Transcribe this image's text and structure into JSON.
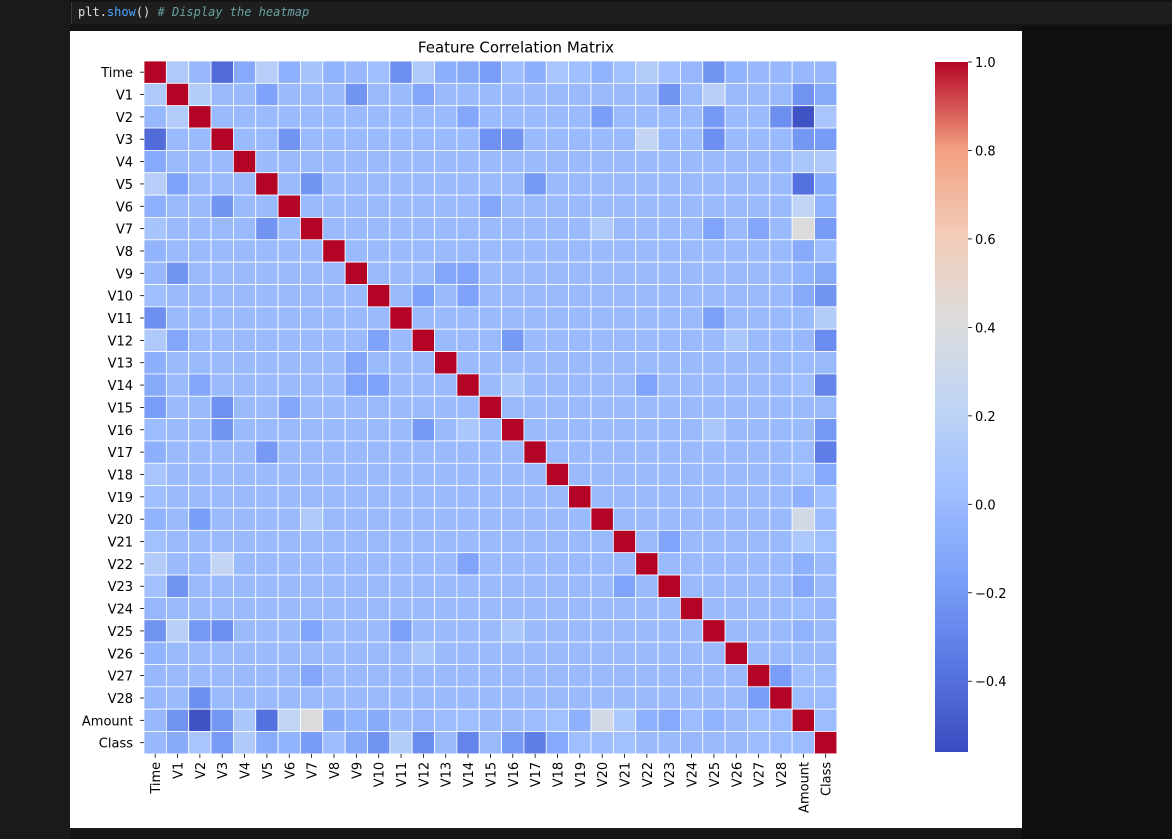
{
  "code": {
    "object": "plt",
    "dot": ".",
    "function": "show",
    "parens": "()",
    "comment": "# Display the heatmap"
  },
  "chart_data": {
    "type": "heatmap",
    "title": "Feature Correlation Matrix",
    "labels": [
      "Time",
      "V1",
      "V2",
      "V3",
      "V4",
      "V5",
      "V6",
      "V7",
      "V8",
      "V9",
      "V10",
      "V11",
      "V12",
      "V13",
      "V14",
      "V15",
      "V16",
      "V17",
      "V18",
      "V19",
      "V20",
      "V21",
      "V22",
      "V23",
      "V24",
      "V25",
      "V26",
      "V27",
      "V28",
      "Amount",
      "Class"
    ],
    "colorbar": {
      "colormap": "coolwarm",
      "vmin": -0.56,
      "vmax": 1.0,
      "ticks": [
        1.0,
        0.8,
        0.6,
        0.4,
        0.2,
        0.0,
        -0.2,
        -0.4
      ],
      "tick_labels": [
        "1.0",
        "0.8",
        "0.6",
        "0.4",
        "0.2",
        "0.0",
        "−0.2",
        "−0.4"
      ]
    },
    "correlations": [
      {
        "row": "Time",
        "col": "V1",
        "value": 0.12
      },
      {
        "row": "Time",
        "col": "V2",
        "value": -0.01
      },
      {
        "row": "Time",
        "col": "V3",
        "value": -0.42
      },
      {
        "row": "Time",
        "col": "V4",
        "value": -0.11
      },
      {
        "row": "Time",
        "col": "V5",
        "value": 0.17
      },
      {
        "row": "Time",
        "col": "V6",
        "value": -0.06
      },
      {
        "row": "Time",
        "col": "V7",
        "value": 0.08
      },
      {
        "row": "Time",
        "col": "V8",
        "value": -0.04
      },
      {
        "row": "Time",
        "col": "V9",
        "value": -0.01
      },
      {
        "row": "Time",
        "col": "V10",
        "value": 0.03
      },
      {
        "row": "Time",
        "col": "V11",
        "value": -0.25
      },
      {
        "row": "Time",
        "col": "V12",
        "value": 0.12
      },
      {
        "row": "Time",
        "col": "V13",
        "value": -0.07
      },
      {
        "row": "Time",
        "col": "V14",
        "value": -0.1
      },
      {
        "row": "Time",
        "col": "V15",
        "value": -0.18
      },
      {
        "row": "Time",
        "col": "V16",
        "value": 0.01
      },
      {
        "row": "Time",
        "col": "V17",
        "value": -0.07
      },
      {
        "row": "Time",
        "col": "V18",
        "value": 0.09
      },
      {
        "row": "Time",
        "col": "V19",
        "value": 0.03
      },
      {
        "row": "Time",
        "col": "V20",
        "value": -0.05
      },
      {
        "row": "Time",
        "col": "V21",
        "value": 0.04
      },
      {
        "row": "Time",
        "col": "V22",
        "value": 0.14
      },
      {
        "row": "Time",
        "col": "V23",
        "value": 0.05
      },
      {
        "row": "Time",
        "col": "V24",
        "value": -0.02
      },
      {
        "row": "Time",
        "col": "V25",
        "value": -0.23
      },
      {
        "row": "Time",
        "col": "V26",
        "value": -0.04
      },
      {
        "row": "Time",
        "col": "V27",
        "value": -0.01
      },
      {
        "row": "Time",
        "col": "V28",
        "value": -0.01
      },
      {
        "row": "Time",
        "col": "Amount",
        "value": -0.01
      },
      {
        "row": "Time",
        "col": "Class",
        "value": -0.01
      },
      {
        "row": "V1",
        "col": "Amount",
        "value": -0.23
      },
      {
        "row": "V2",
        "col": "Amount",
        "value": -0.53
      },
      {
        "row": "V3",
        "col": "Amount",
        "value": -0.21
      },
      {
        "row": "V4",
        "col": "Amount",
        "value": 0.1
      },
      {
        "row": "V5",
        "col": "Amount",
        "value": -0.39
      },
      {
        "row": "V6",
        "col": "Amount",
        "value": 0.22
      },
      {
        "row": "V7",
        "col": "Amount",
        "value": 0.4
      },
      {
        "row": "V8",
        "col": "Amount",
        "value": -0.1
      },
      {
        "row": "V9",
        "col": "Amount",
        "value": -0.04
      },
      {
        "row": "V10",
        "col": "Amount",
        "value": -0.1
      },
      {
        "row": "V11",
        "col": "Amount",
        "value": 0.0
      },
      {
        "row": "V12",
        "col": "Amount",
        "value": -0.01
      },
      {
        "row": "V13",
        "col": "Amount",
        "value": 0.01
      },
      {
        "row": "V14",
        "col": "Amount",
        "value": 0.03
      },
      {
        "row": "V15",
        "col": "Amount",
        "value": -0.0
      },
      {
        "row": "V16",
        "col": "Amount",
        "value": -0.0
      },
      {
        "row": "V17",
        "col": "Amount",
        "value": 0.01
      },
      {
        "row": "V18",
        "col": "Amount",
        "value": 0.04
      },
      {
        "row": "V19",
        "col": "Amount",
        "value": -0.06
      },
      {
        "row": "V20",
        "col": "Amount",
        "value": 0.34
      },
      {
        "row": "V21",
        "col": "Amount",
        "value": 0.11
      },
      {
        "row": "V22",
        "col": "Amount",
        "value": -0.06
      },
      {
        "row": "V23",
        "col": "Amount",
        "value": -0.11
      },
      {
        "row": "V24",
        "col": "Amount",
        "value": 0.01
      },
      {
        "row": "V25",
        "col": "Amount",
        "value": -0.05
      },
      {
        "row": "V26",
        "col": "Amount",
        "value": -0.0
      },
      {
        "row": "V27",
        "col": "Amount",
        "value": 0.03
      },
      {
        "row": "V28",
        "col": "Amount",
        "value": 0.01
      },
      {
        "row": "Amount",
        "col": "Class",
        "value": 0.01
      },
      {
        "row": "V1",
        "col": "Class",
        "value": -0.1
      },
      {
        "row": "V2",
        "col": "Class",
        "value": 0.09
      },
      {
        "row": "V3",
        "col": "Class",
        "value": -0.19
      },
      {
        "row": "V4",
        "col": "Class",
        "value": 0.13
      },
      {
        "row": "V5",
        "col": "Class",
        "value": -0.09
      },
      {
        "row": "V6",
        "col": "Class",
        "value": -0.04
      },
      {
        "row": "V7",
        "col": "Class",
        "value": -0.19
      },
      {
        "row": "V8",
        "col": "Class",
        "value": 0.02
      },
      {
        "row": "V9",
        "col": "Class",
        "value": -0.1
      },
      {
        "row": "V10",
        "col": "Class",
        "value": -0.22
      },
      {
        "row": "V11",
        "col": "Class",
        "value": 0.15
      },
      {
        "row": "V12",
        "col": "Class",
        "value": -0.26
      },
      {
        "row": "V13",
        "col": "Class",
        "value": -0.0
      },
      {
        "row": "V14",
        "col": "Class",
        "value": -0.3
      },
      {
        "row": "V15",
        "col": "Class",
        "value": -0.0
      },
      {
        "row": "V16",
        "col": "Class",
        "value": -0.2
      },
      {
        "row": "V17",
        "col": "Class",
        "value": -0.33
      },
      {
        "row": "V18",
        "col": "Class",
        "value": -0.11
      },
      {
        "row": "V19",
        "col": "Class",
        "value": 0.03
      },
      {
        "row": "V20",
        "col": "Class",
        "value": 0.02
      },
      {
        "row": "V21",
        "col": "Class",
        "value": 0.04
      },
      {
        "row": "V22",
        "col": "Class",
        "value": 0.0
      },
      {
        "row": "V23",
        "col": "Class",
        "value": -0.0
      },
      {
        "row": "V24",
        "col": "Class",
        "value": -0.01
      },
      {
        "row": "V25",
        "col": "Class",
        "value": 0.0
      },
      {
        "row": "V26",
        "col": "Class",
        "value": 0.0
      },
      {
        "row": "V27",
        "col": "Class",
        "value": 0.02
      },
      {
        "row": "V28",
        "col": "Class",
        "value": 0.01
      },
      {
        "row": "V1",
        "col": "V2",
        "value": 0.15
      },
      {
        "row": "V3",
        "col": "V22",
        "value": 0.24
      },
      {
        "row": "V1",
        "col": "V25",
        "value": 0.18
      },
      {
        "row": "V12",
        "col": "V26",
        "value": 0.1
      },
      {
        "row": "V14",
        "col": "V16",
        "value": 0.1
      },
      {
        "row": "V3",
        "col": "V25",
        "value": -0.25
      },
      {
        "row": "V2",
        "col": "V28",
        "value": -0.25
      },
      {
        "row": "V7",
        "col": "V20",
        "value": 0.12
      },
      {
        "row": "V1",
        "col": "V23",
        "value": -0.22
      },
      {
        "row": "V1",
        "col": "V9",
        "value": -0.22
      },
      {
        "row": "V3",
        "col": "V15",
        "value": -0.24
      },
      {
        "row": "V3",
        "col": "V16",
        "value": -0.22
      },
      {
        "row": "V5",
        "col": "V17",
        "value": -0.2
      },
      {
        "row": "V5",
        "col": "V7",
        "value": -0.22
      },
      {
        "row": "V3",
        "col": "V6",
        "value": -0.22
      },
      {
        "row": "V1",
        "col": "V5",
        "value": -0.15
      },
      {
        "row": "V2",
        "col": "V20",
        "value": -0.17
      },
      {
        "row": "V2",
        "col": "V25",
        "value": -0.2
      },
      {
        "row": "V10",
        "col": "V14",
        "value": -0.15
      },
      {
        "row": "V9",
        "col": "V13",
        "value": -0.12
      },
      {
        "row": "V9",
        "col": "V14",
        "value": -0.14
      },
      {
        "row": "V16",
        "col": "V25",
        "value": 0.1
      },
      {
        "row": "V15",
        "col": "V6",
        "value": -0.12
      },
      {
        "row": "V16",
        "col": "V12",
        "value": -0.2
      },
      {
        "row": "V21",
        "col": "V23",
        "value": -0.14
      },
      {
        "row": "V22",
        "col": "V14",
        "value": -0.14
      },
      {
        "row": "V11",
        "col": "V25",
        "value": -0.16
      },
      {
        "row": "V27",
        "col": "V28",
        "value": -0.18
      },
      {
        "row": "V12",
        "col": "V10",
        "value": -0.15
      },
      {
        "row": "V12",
        "col": "V1",
        "value": -0.12
      },
      {
        "row": "V14",
        "col": "V2",
        "value": -0.12
      },
      {
        "row": "V7",
        "col": "V25",
        "value": -0.14
      },
      {
        "row": "V27",
        "col": "V7",
        "value": -0.12
      }
    ]
  }
}
